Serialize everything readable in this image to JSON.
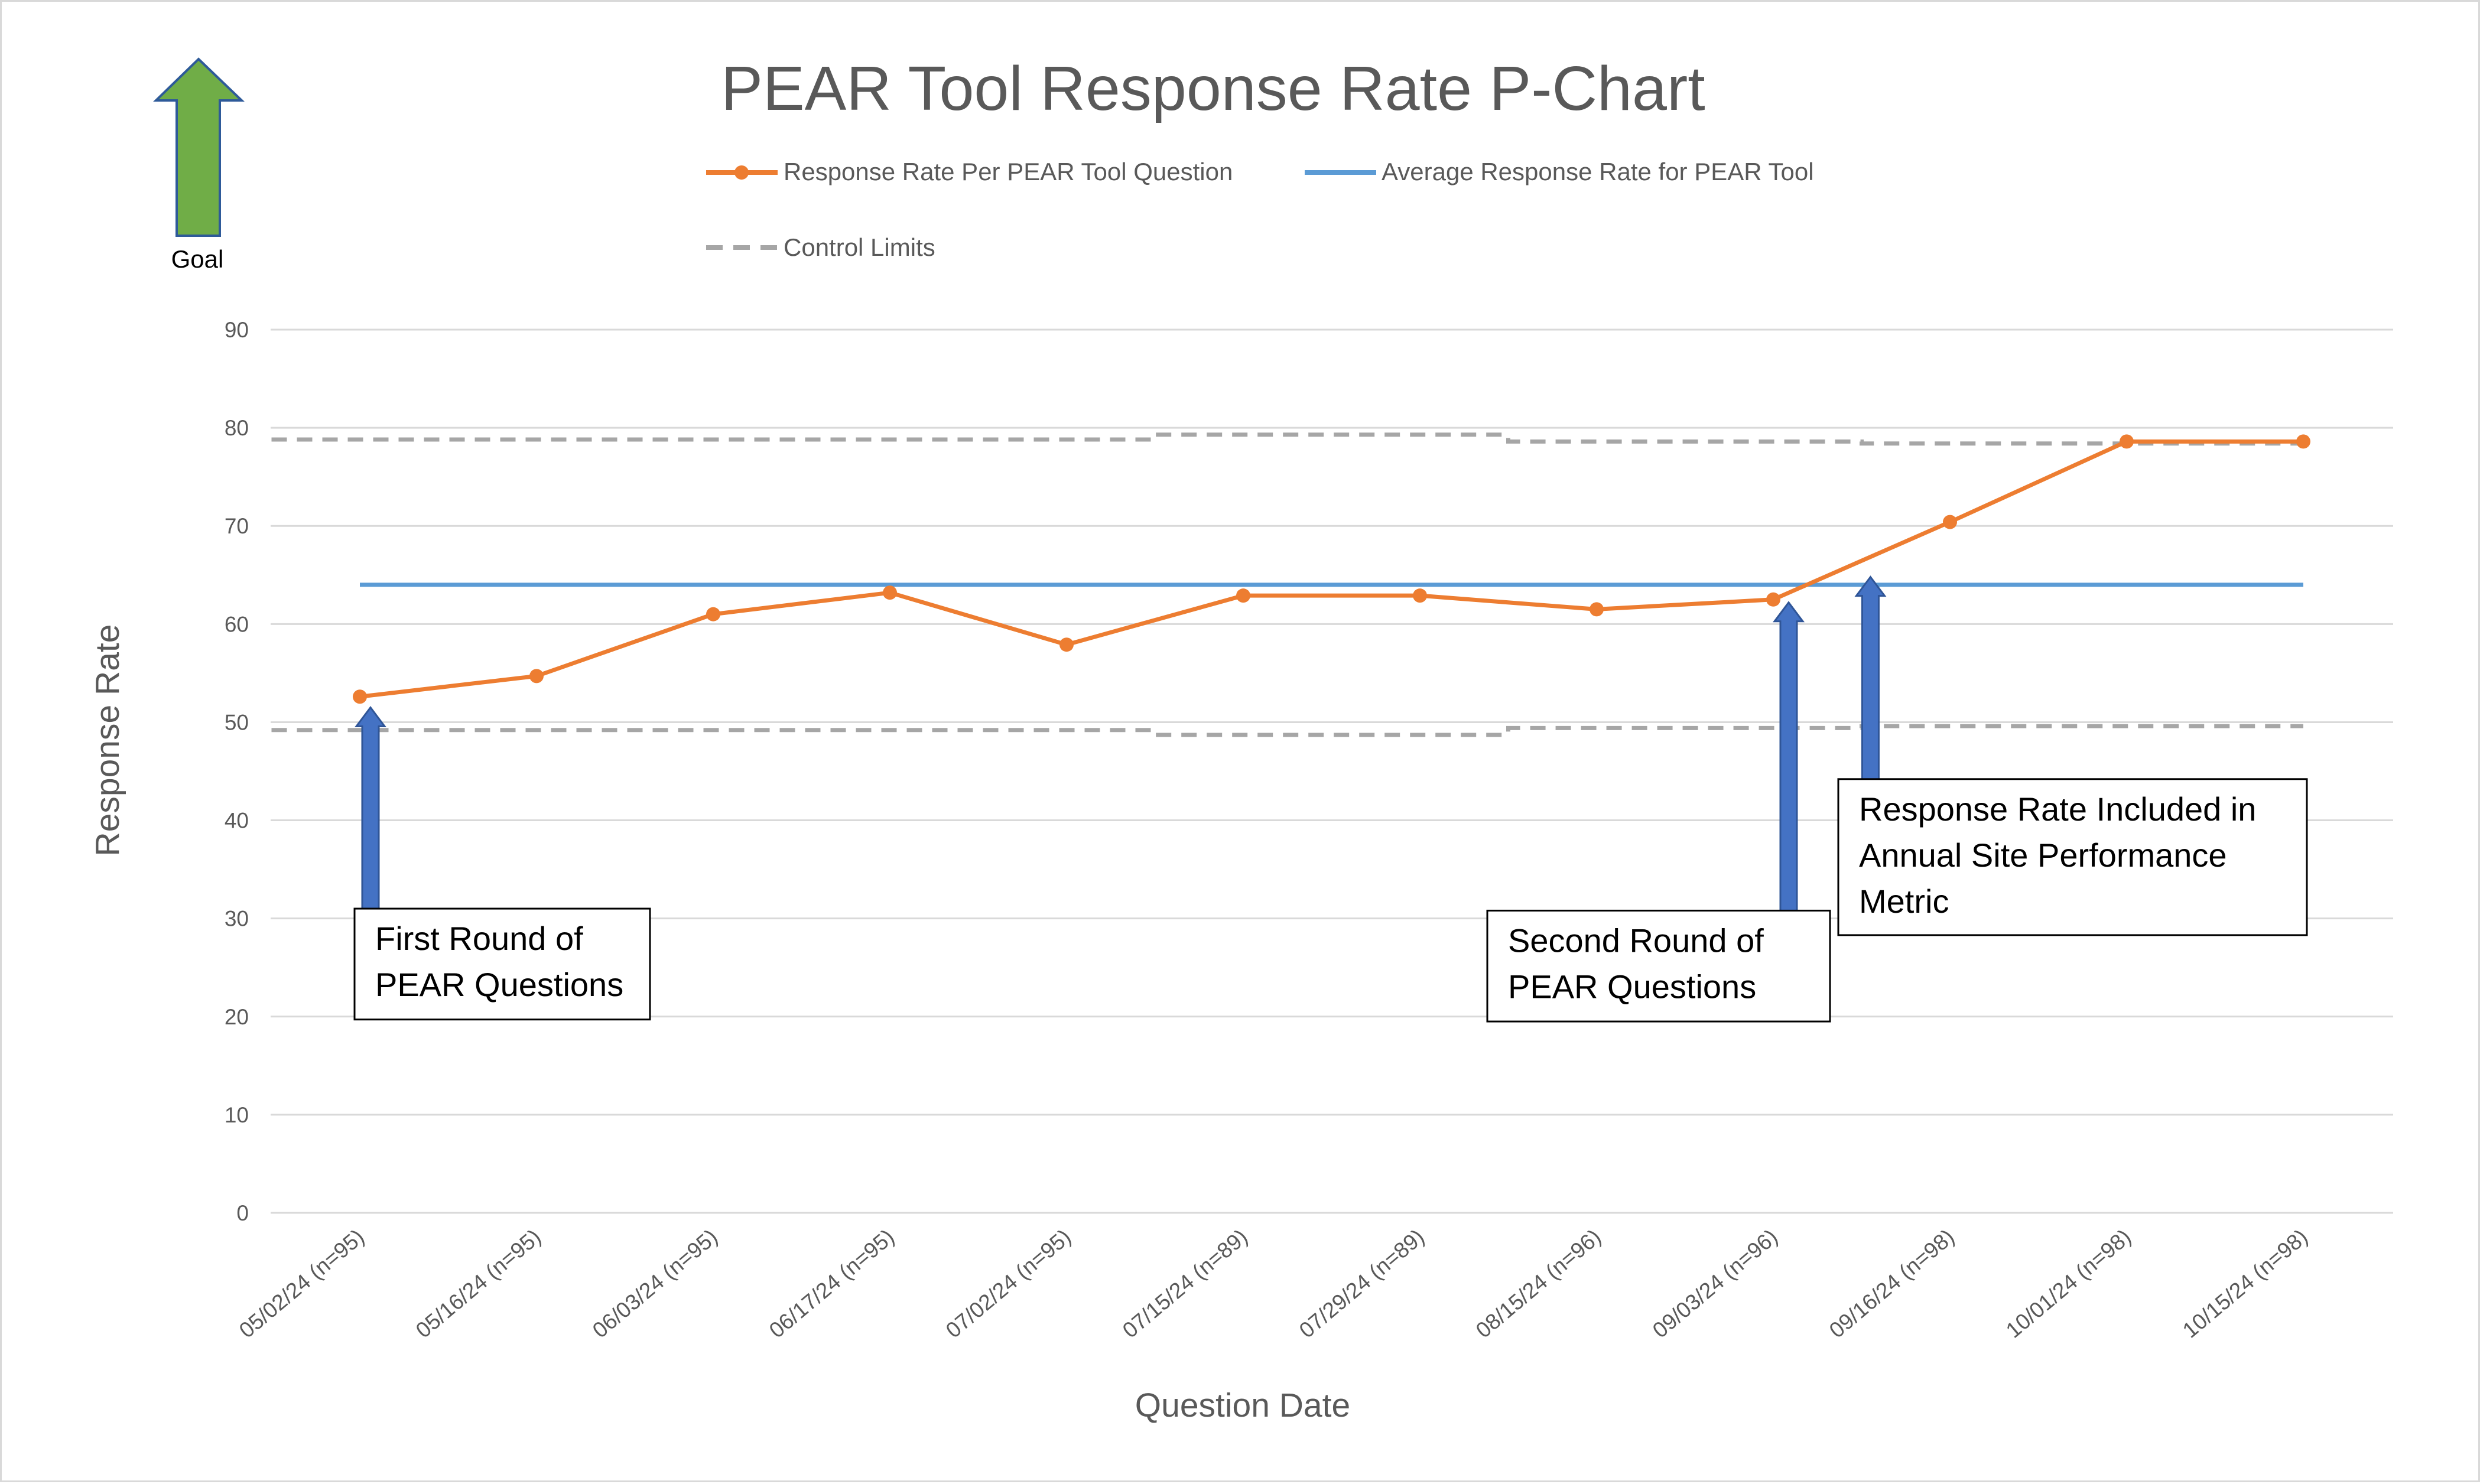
{
  "goal": {
    "label": "Goal",
    "arrow_color": "#70ad47",
    "arrow_outline": "#2e5a99"
  },
  "chart_data": {
    "type": "line",
    "title": "PEAR Tool Response Rate P-Chart",
    "xlabel": "Question Date",
    "ylabel": "Response Rate",
    "ylim": [
      0,
      90
    ],
    "yticks": [
      0,
      10,
      20,
      30,
      40,
      50,
      60,
      70,
      80,
      90
    ],
    "grid": true,
    "legend_position": "top",
    "categories": [
      "05/02/24 (n=95)",
      "05/16/24 (n=95)",
      "06/03/24 (n=95)",
      "06/17/24 (n=95)",
      "07/02/24 (n=95)",
      "07/15/24 (n=89)",
      "07/29/24 (n=89)",
      "08/15/24 (n=96)",
      "09/03/24 (n=96)",
      "09/16/24 (n=98)",
      "10/01/24 (n=98)",
      "10/15/24 (n=98)"
    ],
    "series": [
      {
        "name": "Response Rate Per PEAR Tool Question",
        "color": "#ed7d31",
        "style": "line-markers",
        "values": [
          52.6,
          54.7,
          61.0,
          63.2,
          57.9,
          62.9,
          62.9,
          61.5,
          62.5,
          70.4,
          78.6,
          78.6
        ]
      },
      {
        "name": "Average Response Rate for PEAR Tool",
        "color": "#5b9bd5",
        "style": "solid",
        "values": [
          64.0,
          64.0,
          64.0,
          64.0,
          64.0,
          64.0,
          64.0,
          64.0,
          64.0,
          64.0,
          64.0,
          64.0
        ]
      },
      {
        "name": "Control Limits",
        "color": "#a6a6a6",
        "style": "dashed",
        "upper": [
          78.8,
          78.8,
          78.8,
          78.8,
          78.8,
          79.3,
          79.3,
          78.6,
          78.6,
          78.4,
          78.4,
          78.4
        ],
        "lower": [
          49.2,
          49.2,
          49.2,
          49.2,
          49.2,
          48.7,
          48.7,
          49.4,
          49.4,
          49.6,
          49.6,
          49.6
        ]
      }
    ],
    "annotations": [
      {
        "lines": [
          "First Round of",
          "PEAR Questions"
        ],
        "category_index": 0,
        "arrow_to": 51.5,
        "arrow_from": 30.5,
        "box_top": 31.0,
        "box_bottom": 19.7
      },
      {
        "lines": [
          "Second Round of",
          "PEAR Questions"
        ],
        "category_index": 8,
        "arrow_to": 62.2,
        "arrow_from": 30.5,
        "box_top": 30.8,
        "box_bottom": 19.5
      },
      {
        "lines": [
          "Response Rate Included in",
          "Annual Site Performance",
          "Metric"
        ],
        "category_index": 8.55,
        "arrow_to": 64.8,
        "arrow_from": 44.0,
        "box_top": 44.2,
        "box_bottom": 28.3
      }
    ],
    "annotation_arrow_color": "#4472c4",
    "annotation_arrow_outline": "#2f5597"
  }
}
